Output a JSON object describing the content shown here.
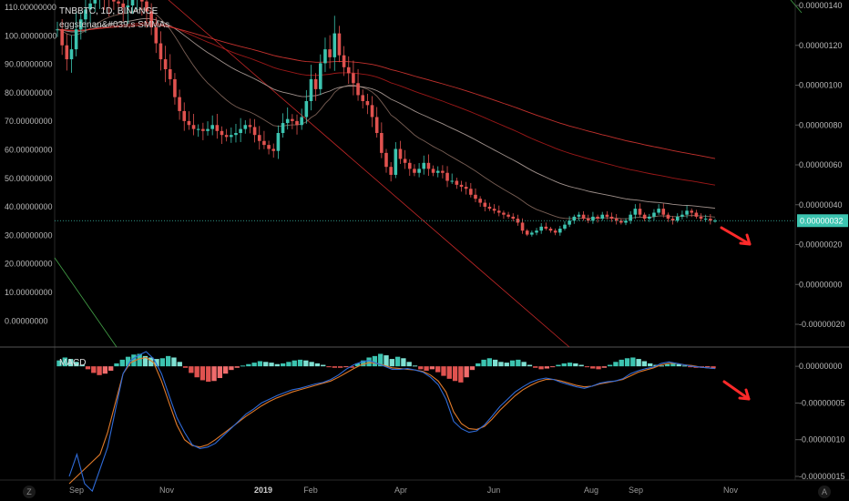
{
  "header": {
    "symbol_line": "TNBBTC, 1D, BINANCE",
    "indicator_line": "eggstenan&#039;s SMMAs"
  },
  "macd_label": "MACD",
  "price_badge": "0.00000032",
  "corner": {
    "left": "Z",
    "right": "A"
  },
  "colors": {
    "up": "#3cc4b0",
    "down": "#e0524f",
    "macd": "#2f6bd8",
    "signal": "#e07a2a",
    "hist_up": "#7ee0d2",
    "hist_down": "#f06c6c",
    "trend_red": "#c62828",
    "trend_green": "#43a047",
    "arrow": "#ff2a2a"
  },
  "chart_data": [
    {
      "type": "line",
      "title": "TNBBTC, 1D, BINANCE",
      "y_left_ticks": [
        "110.00000000",
        "100.00000000",
        "90.00000000",
        "80.00000000",
        "70.00000000",
        "60.00000000",
        "50.00000000",
        "40.00000000",
        "30.00000000",
        "20.00000000",
        "10.00000000",
        "0.00000000"
      ],
      "y_right_ticks": [
        "0.00000140",
        "0.00000120",
        "0.00000100",
        "0.00000080",
        "0.00000060",
        "0.00000040",
        "0.00000020",
        "0.00000000",
        "-0.00000020"
      ],
      "x_ticks": [
        "Sep",
        "Nov",
        "2019",
        "Feb",
        "Apr",
        "Jun",
        "Aug",
        "Sep",
        "Nov"
      ],
      "ylim": [
        -3e-07,
        1.45e-06
      ],
      "current_price": 3.2e-07,
      "series": [
        {
          "name": "price",
          "x": [
            0,
            3,
            6,
            9,
            12,
            15,
            18,
            21,
            24,
            27,
            30,
            33,
            36,
            39,
            42,
            45,
            48,
            51,
            54,
            57,
            60,
            63,
            66,
            69,
            72,
            75,
            78,
            81,
            84,
            87,
            90,
            93,
            96,
            99,
            102,
            105,
            108,
            111,
            114,
            117,
            120,
            123,
            126,
            129,
            132,
            135,
            138,
            141,
            144,
            147,
            150,
            153,
            156,
            159,
            162,
            165,
            168,
            171,
            174,
            177,
            180,
            183,
            186,
            189,
            192,
            195,
            198,
            201,
            204,
            207,
            210,
            213,
            216,
            219,
            222,
            225,
            228,
            231,
            234,
            237,
            240,
            243,
            246,
            249,
            252,
            255,
            258,
            261,
            264,
            267,
            270,
            273,
            276,
            279,
            282,
            285,
            288,
            291,
            294,
            297,
            300,
            303,
            306,
            309,
            312,
            315,
            318,
            321,
            324,
            327,
            330,
            333,
            336,
            339,
            342,
            345,
            348,
            351,
            354,
            357,
            360,
            363,
            366,
            369,
            372,
            375,
            378,
            381,
            384,
            387,
            390,
            393,
            396,
            399,
            402,
            405,
            408,
            411,
            414,
            417,
            420
          ],
          "values": [
            1.28e-06,
            1.2e-06,
            1.13e-06,
            1.18e-06,
            1.28e-06,
            1.33e-06,
            1.38e-06,
            1.41e-06,
            1.44e-06,
            1.46e-06,
            1.45e-06,
            1.43e-06,
            1.42e-06,
            1.41e-06,
            1.39e-06,
            1.4e-06,
            1.43e-06,
            1.45e-06,
            1.42e-06,
            1.37e-06,
            1.29e-06,
            1.21e-06,
            1.13e-06,
            1.08e-06,
            1.03e-06,
            9.4e-07,
            8.7e-07,
            8.2e-07,
            8e-07,
            7.8e-07,
            7.8e-07,
            7.7e-07,
            7.8e-07,
            8e-07,
            7.7e-07,
            7.5e-07,
            7.4e-07,
            7.5e-07,
            7.6e-07,
            7.8e-07,
            8e-07,
            7.9e-07,
            7.5e-07,
            7.2e-07,
            7e-07,
            6.8e-07,
            6.7e-07,
            7.6e-07,
            8.1e-07,
            8.3e-07,
            8.2e-07,
            8e-07,
            8.4e-07,
            9.2e-07,
            1.03e-06,
            9.8e-07,
            1.11e-06,
            1.18e-06,
            1.14e-06,
            1.26e-06,
            1.15e-06,
            1.09e-06,
            1.06e-06,
            1.01e-06,
            9.5e-07,
            9.2e-07,
            9e-07,
            8.4e-07,
            7.6e-07,
            6.6e-07,
            5.9e-07,
            5.5e-07,
            6.8e-07,
            6.3e-07,
            6.1e-07,
            5.8e-07,
            5.6e-07,
            5.8e-07,
            6.1e-07,
            5.8e-07,
            5.6e-07,
            5.7e-07,
            5.6e-07,
            5.2e-07,
            5.2e-07,
            5e-07,
            4.9e-07,
            4.8e-07,
            4.5e-07,
            4.3e-07,
            4.1e-07,
            3.9e-07,
            3.8e-07,
            3.7e-07,
            3.6e-07,
            3.5e-07,
            3.4e-07,
            3.3e-07,
            3.1e-07,
            2.7e-07,
            2.5e-07,
            2.6e-07,
            2.7e-07,
            2.9e-07,
            2.8e-07,
            2.7e-07,
            2.6e-07,
            2.8e-07,
            3e-07,
            3.2e-07,
            3.4e-07,
            3.5e-07,
            3.3e-07,
            3.2e-07,
            3.4e-07,
            3.3e-07,
            3.5e-07,
            3.4e-07,
            3.3e-07,
            3.2e-07,
            3.1e-07,
            3.2e-07,
            3.5e-07,
            3.8e-07,
            3.5e-07,
            3.3e-07,
            3.4e-07,
            3.6e-07,
            3.8e-07,
            3.5e-07,
            3.3e-07,
            3.2e-07,
            3.4e-07,
            3.5e-07,
            3.7e-07,
            3.6e-07,
            3.4e-07,
            3.3e-07,
            3.3e-07,
            3.2e-07,
            3.2e-07
          ]
        }
      ]
    },
    {
      "type": "bar",
      "title": "MACD",
      "y_right_ticks": [
        "0.00000000",
        "-0.00000005",
        "-0.00000010",
        "-0.00000015"
      ],
      "ylim": [
        -1.55e-07,
        2.5e-08
      ],
      "series": [
        {
          "name": "histogram",
          "values": [
            8e-09,
            1.2e-08,
            1e-08,
            6e-09,
            2e-09,
            -4e-09,
            -9e-09,
            -1.2e-08,
            -1e-08,
            -6e-09,
            4e-09,
            9e-09,
            1.3e-08,
            1.6e-08,
            1.7e-08,
            1.4e-08,
            1.2e-08,
            1e-08,
            1.1e-08,
            1.4e-08,
            1.2e-08,
            6e-09,
            -2e-09,
            -9e-09,
            -1.5e-08,
            -1.9e-08,
            -2.1e-08,
            -2e-08,
            -1.6e-08,
            -1e-08,
            -5e-09,
            -2e-09,
            1e-09,
            3e-09,
            5e-09,
            7e-09,
            6e-09,
            5e-09,
            3e-09,
            4e-09,
            6e-09,
            8e-09,
            9e-09,
            8e-09,
            6e-09,
            4e-09,
            2e-09,
            -1e-09,
            -2e-09,
            -2e-09,
            -1e-09,
            -2e-09,
            4e-09,
            8e-09,
            1.2e-08,
            1.4e-08,
            1.7e-08,
            1.5e-08,
            1e-08,
            1.3e-08,
            1.1e-08,
            6e-09,
            1e-09,
            -4e-09,
            -6e-09,
            -4e-09,
            -8e-09,
            -1.3e-08,
            -1.7e-08,
            -2e-08,
            -2.2e-08,
            -1.5e-08,
            -5e-09,
            4e-09,
            9e-09,
            1.1e-08,
            9e-09,
            6e-09,
            5e-09,
            8e-09,
            9e-09,
            6e-09,
            2e-09,
            -2e-09,
            -4e-09,
            -3e-09,
            -1e-09,
            2e-09,
            4e-09,
            5e-09,
            4e-09,
            2e-09,
            -1e-09,
            -3e-09,
            -4e-09,
            -2e-09,
            2e-09,
            6e-09,
            9e-09,
            1.1e-08,
            1.2e-08,
            1e-08,
            7e-09,
            4e-09,
            2e-09,
            1e-09,
            3e-09,
            5e-09,
            3e-09,
            1e-09,
            -1e-09,
            -2e-09,
            -2e-09,
            -1e-09,
            -3e-09
          ]
        },
        {
          "name": "macd",
          "values": [
            -1.5e-07,
            -1.2e-07,
            -1.6e-07,
            -1.7e-07,
            -1.4e-07,
            -1.1e-07,
            -6e-08,
            -1e-08,
            8e-09,
            1.5e-08,
            2e-08,
            1e-08,
            -1e-08,
            -4e-08,
            -7e-08,
            -9e-08,
            -1.07e-07,
            -1.12e-07,
            -1.1e-07,
            -1.05e-07,
            -9.5e-08,
            -8.5e-08,
            -7.5e-08,
            -6.5e-08,
            -5.8e-08,
            -5e-08,
            -4.5e-08,
            -4e-08,
            -3.6e-08,
            -3.2e-08,
            -3e-08,
            -2.7e-08,
            -2.4e-08,
            -2.2e-08,
            -1.8e-08,
            -1.2e-08,
            -4e-09,
            2e-09,
            6e-09,
            8e-09,
            4e-09,
            0.0,
            -4e-09,
            -4e-09,
            -3e-09,
            -5e-09,
            -8e-09,
            -1.5e-08,
            -2.5e-08,
            -4.5e-08,
            -7.5e-08,
            -8.5e-08,
            -9e-08,
            -8.8e-08,
            -8e-08,
            -6.8e-08,
            -5.5e-08,
            -4.5e-08,
            -3.5e-08,
            -2.8e-08,
            -2.2e-08,
            -1.8e-08,
            -1.6e-08,
            -1.8e-08,
            -2.2e-08,
            -2.5e-08,
            -2.8e-08,
            -3e-08,
            -2.7e-08,
            -2.3e-08,
            -2.1e-08,
            -2e-08,
            -1.7e-08,
            -1e-08,
            -6e-09,
            -3e-09,
            -1e-09,
            4e-09,
            6e-09,
            4e-09,
            2e-09,
            0.0,
            -1e-09,
            -2e-09,
            -3e-09
          ]
        },
        {
          "name": "signal",
          "values": [
            -1.6e-07,
            -1.5e-07,
            -1.4e-07,
            -1.3e-07,
            -1.2e-07,
            -9e-08,
            -5e-08,
            -1e-08,
            5e-09,
            1e-08,
            1.2e-08,
            5e-09,
            -2e-08,
            -5e-08,
            -8e-08,
            -1e-07,
            -1.08e-07,
            -1.1e-07,
            -1.07e-07,
            -1e-07,
            -9.2e-08,
            -8.4e-08,
            -7.6e-08,
            -6.8e-08,
            -6.1e-08,
            -5.4e-08,
            -4.8e-08,
            -4.3e-08,
            -3.9e-08,
            -3.5e-08,
            -3.2e-08,
            -2.9e-08,
            -2.6e-08,
            -2.3e-08,
            -2e-08,
            -1.5e-08,
            -9e-09,
            -3e-09,
            2e-09,
            5e-09,
            4e-09,
            1e-09,
            -2e-09,
            -3e-09,
            -4e-09,
            -5e-09,
            -7e-09,
            -1.2e-08,
            -2e-08,
            -3.5e-08,
            -6.2e-08,
            -7.8e-08,
            -8.5e-08,
            -8.6e-08,
            -8.2e-08,
            -7.2e-08,
            -6e-08,
            -5e-08,
            -4e-08,
            -3.2e-08,
            -2.6e-08,
            -2.1e-08,
            -1.8e-08,
            -1.8e-08,
            -2e-08,
            -2.3e-08,
            -2.6e-08,
            -2.8e-08,
            -2.7e-08,
            -2.4e-08,
            -2.2e-08,
            -2e-08,
            -1.8e-08,
            -1.3e-08,
            -8e-09,
            -5e-09,
            -2e-09,
            2e-09,
            4e-09,
            4e-09,
            2e-09,
            1e-09,
            -1e-09,
            -2e-09,
            -3e-09
          ]
        }
      ]
    }
  ]
}
